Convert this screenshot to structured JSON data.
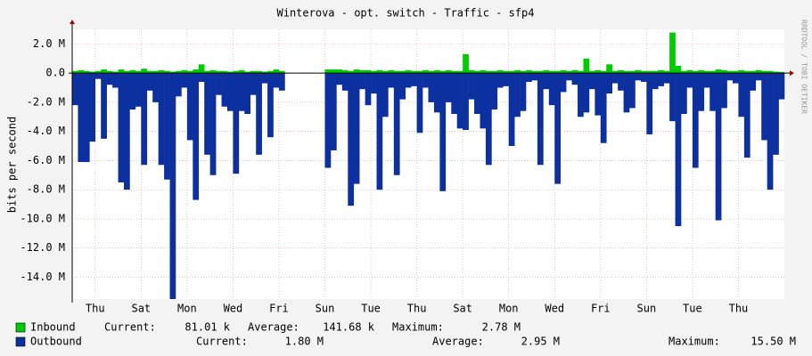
{
  "chart_data": {
    "type": "mirrored-area",
    "title": "Winterova - opt. switch - Traffic - sfp4",
    "y_label": "bits per second",
    "watermark": "RRDTOOL / TOBI OETIKER",
    "stat_labels": [
      "Current:",
      "Average:",
      "Maximum:"
    ],
    "xlim": [
      0,
      31
    ],
    "xticks": [
      {
        "value": 1,
        "label": "Thu"
      },
      {
        "value": 3,
        "label": "Sat"
      },
      {
        "value": 5,
        "label": "Mon"
      },
      {
        "value": 7,
        "label": "Wed"
      },
      {
        "value": 9,
        "label": "Fri"
      },
      {
        "value": 11,
        "label": "Sun"
      },
      {
        "value": 13,
        "label": "Tue"
      },
      {
        "value": 15,
        "label": "Thu"
      },
      {
        "value": 17,
        "label": "Sat"
      },
      {
        "value": 19,
        "label": "Mon"
      },
      {
        "value": 21,
        "label": "Wed"
      },
      {
        "value": 23,
        "label": "Fri"
      },
      {
        "value": 25,
        "label": "Sun"
      },
      {
        "value": 27,
        "label": "Tue"
      },
      {
        "value": 29,
        "label": "Thu"
      }
    ],
    "ylim": [
      -15500000,
      3000000
    ],
    "yticks": [
      {
        "value": 2000000,
        "label": "2.0 M"
      },
      {
        "value": 0,
        "label": "0.0"
      },
      {
        "value": -2000000,
        "label": "-2.0 M"
      },
      {
        "value": -4000000,
        "label": "-4.0 M"
      },
      {
        "value": -6000000,
        "label": "-6.0 M"
      },
      {
        "value": -8000000,
        "label": "-8.0 M"
      },
      {
        "value": -10000000,
        "label": "-10.0 M"
      },
      {
        "value": -12000000,
        "label": "-12.0 M"
      },
      {
        "value": -14000000,
        "label": "-14.0 M"
      }
    ],
    "grid": true,
    "series": [
      {
        "name": "Inbound",
        "color": "#00cc00",
        "current": "81.01 k",
        "average": "141.68 k",
        "maximum": "2.78 M",
        "values": [
          150000,
          200000,
          150000,
          100000,
          150000,
          250000,
          150000,
          100000,
          250000,
          150000,
          200000,
          150000,
          300000,
          150000,
          150000,
          200000,
          150000,
          100000,
          150000,
          200000,
          150000,
          250000,
          600000,
          150000,
          200000,
          150000,
          150000,
          100000,
          150000,
          200000,
          100000,
          150000,
          150000,
          100000,
          150000,
          250000,
          150000,
          null,
          null,
          null,
          null,
          null,
          null,
          null,
          250000,
          250000,
          250000,
          200000,
          150000,
          250000,
          200000,
          200000,
          150000,
          200000,
          150000,
          200000,
          150000,
          150000,
          200000,
          150000,
          150000,
          200000,
          150000,
          200000,
          150000,
          200000,
          150000,
          150000,
          1300000,
          200000,
          150000,
          200000,
          150000,
          150000,
          200000,
          150000,
          150000,
          200000,
          150000,
          200000,
          150000,
          150000,
          200000,
          150000,
          150000,
          200000,
          150000,
          200000,
          150000,
          1000000,
          150000,
          200000,
          150000,
          600000,
          150000,
          200000,
          150000,
          150000,
          200000,
          150000,
          150000,
          150000,
          200000,
          150000,
          2780000,
          500000,
          150000,
          200000,
          150000,
          200000,
          150000,
          150000,
          250000,
          200000,
          150000,
          150000,
          200000,
          150000,
          150000,
          200000,
          150000,
          150000,
          100000,
          80000
        ]
      },
      {
        "name": "Outbound",
        "color": "#0c30a0",
        "current": "1.80 M",
        "average": "2.95 M",
        "maximum": "15.50 M",
        "values": [
          -2200000,
          -6100000,
          -6100000,
          -4700000,
          -400000,
          -4500000,
          -800000,
          -1000000,
          -7500000,
          -8000000,
          -2500000,
          -2300000,
          -6300000,
          -1200000,
          -2000000,
          -6300000,
          -7300000,
          -15500000,
          -1600000,
          -1000000,
          -4600000,
          -8700000,
          -600000,
          -5600000,
          -7000000,
          -1500000,
          -2300000,
          -2600000,
          -6900000,
          -2600000,
          -2800000,
          -1500000,
          -5600000,
          -700000,
          -4400000,
          -1000000,
          -1200000,
          null,
          null,
          null,
          null,
          null,
          null,
          null,
          -6500000,
          -5300000,
          -800000,
          -1200000,
          -9100000,
          -7600000,
          -1100000,
          -2200000,
          -1400000,
          -8000000,
          -3000000,
          -1000000,
          -7000000,
          -1800000,
          -1000000,
          -900000,
          -4100000,
          -1000000,
          -2000000,
          -2700000,
          -8100000,
          -2000000,
          -2800000,
          -3800000,
          -3900000,
          -1800000,
          -2800000,
          -3800000,
          -6300000,
          -2500000,
          -1000000,
          -900000,
          -5000000,
          -3000000,
          -2600000,
          -600000,
          -500000,
          -6300000,
          -1100000,
          -2200000,
          -7600000,
          -1300000,
          -500000,
          -800000,
          -3000000,
          -2700000,
          -1100000,
          -2900000,
          -4800000,
          -1400000,
          -700000,
          -1200000,
          -2700000,
          -2400000,
          -500000,
          -600000,
          -4200000,
          -1100000,
          -900000,
          -700000,
          -3300000,
          -10500000,
          -2800000,
          -1000000,
          -6500000,
          -2600000,
          -1000000,
          -2600000,
          -10100000,
          -2400000,
          -500000,
          -700000,
          -3000000,
          -5800000,
          -1200000,
          -500000,
          -4600000,
          -8000000,
          -5600000,
          -1800000
        ]
      }
    ]
  }
}
